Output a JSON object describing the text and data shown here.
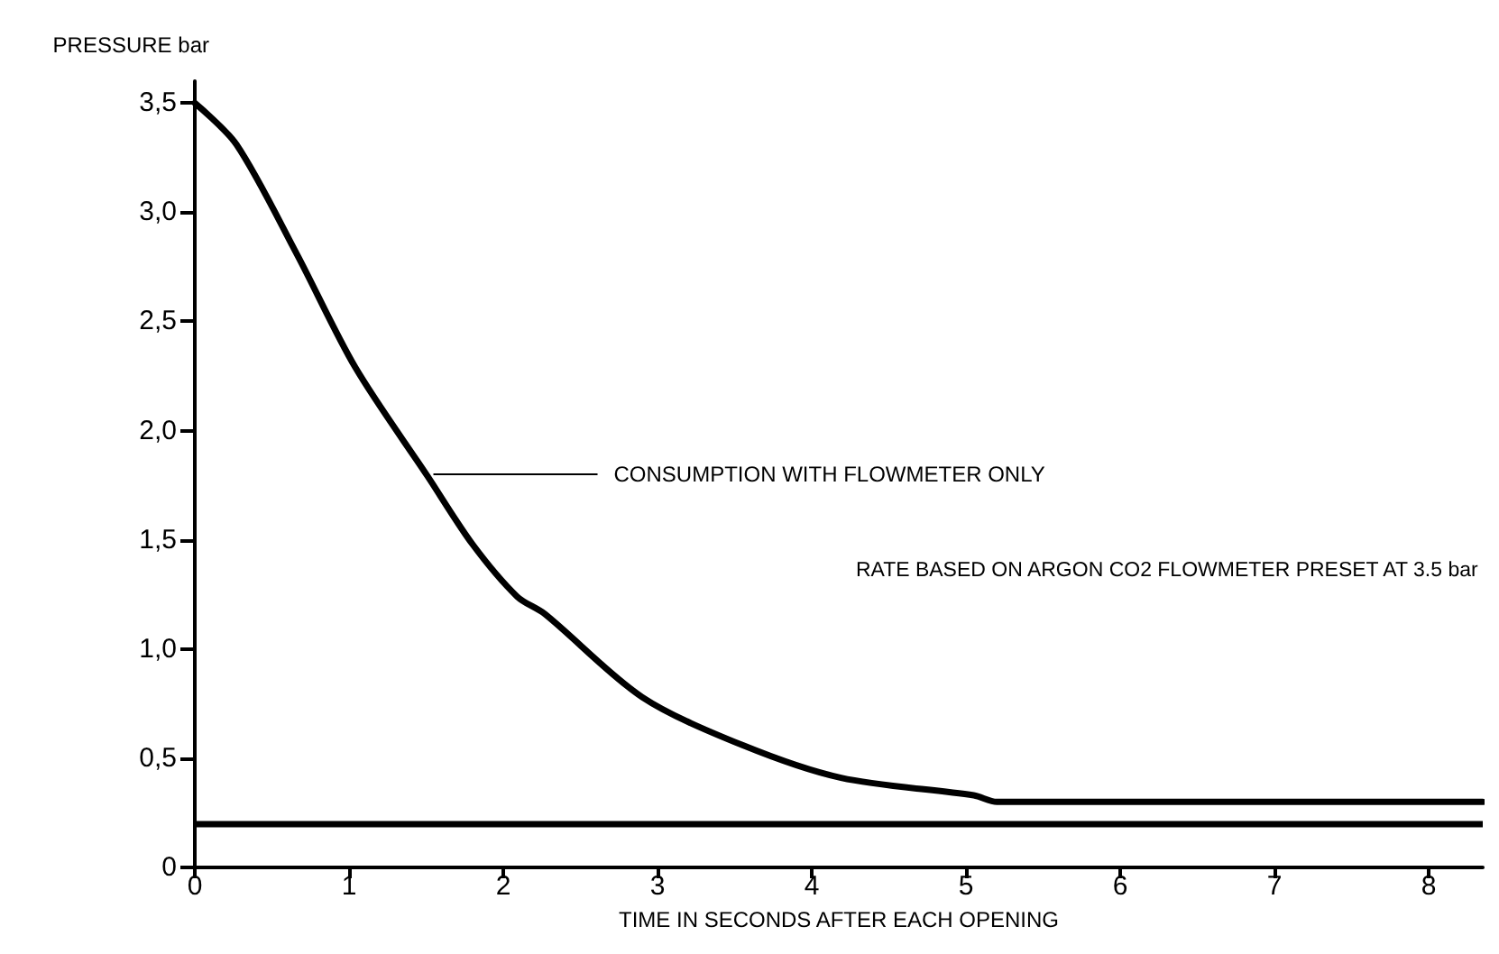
{
  "chart_data": {
    "type": "line",
    "ylabel": "PRESSURE bar",
    "xlabel": "TIME IN SECONDS AFTER EACH OPENING",
    "x": [
      0,
      0.27,
      0.66,
      1.04,
      1.51,
      1.8,
      2.09,
      2.27,
      2.9,
      3.55,
      4.19,
      5.05,
      5.2,
      6,
      7,
      8.35
    ],
    "series": [
      {
        "color": "#000000",
        "values": [
          3.5,
          3.31,
          2.81,
          2.29,
          1.79,
          1.48,
          1.24,
          1.16,
          0.78,
          0.56,
          0.41,
          0.33,
          0.3,
          0.3,
          0.3,
          0.3
        ]
      }
    ],
    "xlim": [
      0,
      8.35
    ],
    "ylim": [
      0,
      3.6
    ],
    "xticks": [
      0,
      1,
      2,
      3,
      4,
      5,
      6,
      7,
      8
    ],
    "yticks": [
      0,
      {
        "value": 0.5,
        "label": "0,5"
      },
      {
        "value": 1,
        "label": "1,0"
      },
      {
        "value": 1.5,
        "label": "1,5"
      },
      {
        "value": 2,
        "label": "2,0"
      },
      {
        "value": 2.5,
        "label": "2,5"
      },
      {
        "value": 3,
        "label": "3,0"
      },
      {
        "value": 3.5,
        "label": "3,5"
      }
    ],
    "ref_lines": [
      {
        "axis": "y",
        "value": 0.2,
        "color": "#000000"
      }
    ],
    "annotations": [
      {
        "text": "CONSUMPTION WITH FLOWMETER ONLY",
        "x": 1.5,
        "y": 1.8
      },
      "RATE BASED ON ARGON CO2 FLOWMETER PRESET AT 3.5 bar"
    ],
    "grid": false,
    "marker": "none",
    "line_style": "solid"
  }
}
